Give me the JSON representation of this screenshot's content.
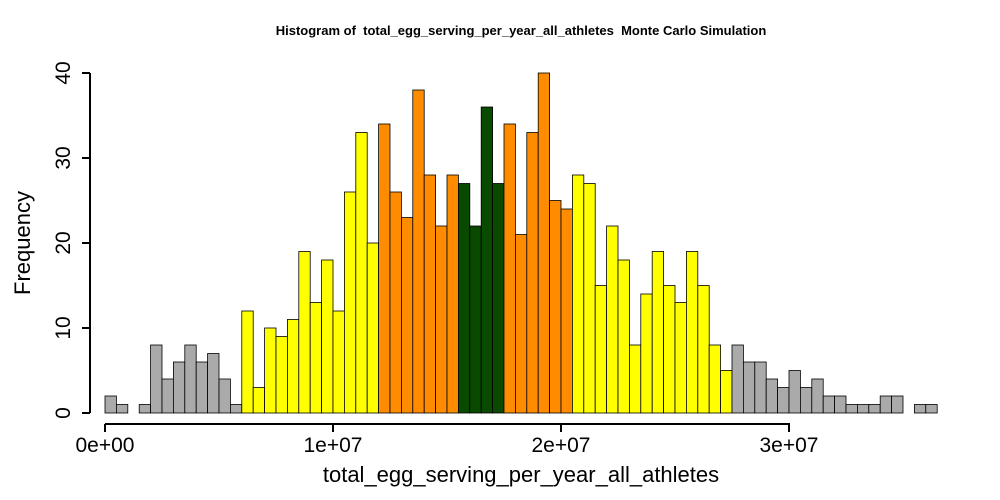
{
  "chart_data": {
    "type": "bar",
    "title": "Histogram of  total_egg_serving_per_year_all_athletes  Monte Carlo Simulation",
    "xlabel": "total_egg_serving_per_year_all_athletes",
    "ylabel": "Frequency",
    "xlim": [
      0,
      36500000
    ],
    "ylim": [
      0,
      40
    ],
    "bin_width": 500000,
    "x_ticks": [
      {
        "value": 0,
        "label": "0e+00"
      },
      {
        "value": 10000000,
        "label": "1e+07"
      },
      {
        "value": 20000000,
        "label": "2e+07"
      },
      {
        "value": 30000000,
        "label": "3e+07"
      }
    ],
    "y_ticks": [
      {
        "value": 0,
        "label": "0"
      },
      {
        "value": 10,
        "label": "10"
      },
      {
        "value": 20,
        "label": "20"
      },
      {
        "value": 30,
        "label": "30"
      },
      {
        "value": 40,
        "label": "40"
      }
    ],
    "colors": {
      "tail": "#aaaaaa",
      "outer": "#ffff00",
      "inner": "#ff8c00",
      "center": "#0a4a00",
      "border": "#000000"
    },
    "bins": [
      {
        "start": 0,
        "count": 2,
        "group": "tail"
      },
      {
        "start": 500000,
        "count": 1,
        "group": "tail"
      },
      {
        "start": 1000000,
        "count": 0,
        "group": "tail"
      },
      {
        "start": 1500000,
        "count": 1,
        "group": "tail"
      },
      {
        "start": 2000000,
        "count": 8,
        "group": "tail"
      },
      {
        "start": 2500000,
        "count": 4,
        "group": "tail"
      },
      {
        "start": 3000000,
        "count": 6,
        "group": "tail"
      },
      {
        "start": 3500000,
        "count": 8,
        "group": "tail"
      },
      {
        "start": 4000000,
        "count": 6,
        "group": "tail"
      },
      {
        "start": 4500000,
        "count": 7,
        "group": "tail"
      },
      {
        "start": 5000000,
        "count": 4,
        "group": "tail"
      },
      {
        "start": 5500000,
        "count": 1,
        "group": "tail"
      },
      {
        "start": 6000000,
        "count": 12,
        "group": "outer"
      },
      {
        "start": 6500000,
        "count": 3,
        "group": "outer"
      },
      {
        "start": 7000000,
        "count": 10,
        "group": "outer"
      },
      {
        "start": 7500000,
        "count": 9,
        "group": "outer"
      },
      {
        "start": 8000000,
        "count": 11,
        "group": "outer"
      },
      {
        "start": 8500000,
        "count": 19,
        "group": "outer"
      },
      {
        "start": 9000000,
        "count": 13,
        "group": "outer"
      },
      {
        "start": 9500000,
        "count": 18,
        "group": "outer"
      },
      {
        "start": 10000000,
        "count": 12,
        "group": "outer"
      },
      {
        "start": 10500000,
        "count": 26,
        "group": "outer"
      },
      {
        "start": 11000000,
        "count": 33,
        "group": "outer"
      },
      {
        "start": 11500000,
        "count": 20,
        "group": "outer"
      },
      {
        "start": 12000000,
        "count": 34,
        "group": "inner"
      },
      {
        "start": 12500000,
        "count": 26,
        "group": "inner"
      },
      {
        "start": 13000000,
        "count": 23,
        "group": "inner"
      },
      {
        "start": 13500000,
        "count": 38,
        "group": "inner"
      },
      {
        "start": 14000000,
        "count": 28,
        "group": "inner"
      },
      {
        "start": 14500000,
        "count": 22,
        "group": "inner"
      },
      {
        "start": 15000000,
        "count": 28,
        "group": "inner"
      },
      {
        "start": 15500000,
        "count": 27,
        "group": "center"
      },
      {
        "start": 16000000,
        "count": 22,
        "group": "center"
      },
      {
        "start": 16500000,
        "count": 36,
        "group": "center"
      },
      {
        "start": 17000000,
        "count": 27,
        "group": "center"
      },
      {
        "start": 17500000,
        "count": 34,
        "group": "inner"
      },
      {
        "start": 18000000,
        "count": 21,
        "group": "inner"
      },
      {
        "start": 18500000,
        "count": 33,
        "group": "inner"
      },
      {
        "start": 19000000,
        "count": 40,
        "group": "inner"
      },
      {
        "start": 19500000,
        "count": 25,
        "group": "inner"
      },
      {
        "start": 20000000,
        "count": 24,
        "group": "inner"
      },
      {
        "start": 20500000,
        "count": 28,
        "group": "outer"
      },
      {
        "start": 21000000,
        "count": 27,
        "group": "outer"
      },
      {
        "start": 21500000,
        "count": 15,
        "group": "outer"
      },
      {
        "start": 22000000,
        "count": 22,
        "group": "outer"
      },
      {
        "start": 22500000,
        "count": 18,
        "group": "outer"
      },
      {
        "start": 23000000,
        "count": 8,
        "group": "outer"
      },
      {
        "start": 23500000,
        "count": 14,
        "group": "outer"
      },
      {
        "start": 24000000,
        "count": 19,
        "group": "outer"
      },
      {
        "start": 24500000,
        "count": 15,
        "group": "outer"
      },
      {
        "start": 25000000,
        "count": 13,
        "group": "outer"
      },
      {
        "start": 25500000,
        "count": 19,
        "group": "outer"
      },
      {
        "start": 26000000,
        "count": 15,
        "group": "outer"
      },
      {
        "start": 26500000,
        "count": 8,
        "group": "outer"
      },
      {
        "start": 27000000,
        "count": 5,
        "group": "outer"
      },
      {
        "start": 27500000,
        "count": 8,
        "group": "tail"
      },
      {
        "start": 28000000,
        "count": 6,
        "group": "tail"
      },
      {
        "start": 28500000,
        "count": 6,
        "group": "tail"
      },
      {
        "start": 29000000,
        "count": 4,
        "group": "tail"
      },
      {
        "start": 29500000,
        "count": 3,
        "group": "tail"
      },
      {
        "start": 30000000,
        "count": 5,
        "group": "tail"
      },
      {
        "start": 30500000,
        "count": 3,
        "group": "tail"
      },
      {
        "start": 31000000,
        "count": 4,
        "group": "tail"
      },
      {
        "start": 31500000,
        "count": 2,
        "group": "tail"
      },
      {
        "start": 32000000,
        "count": 2,
        "group": "tail"
      },
      {
        "start": 32500000,
        "count": 1,
        "group": "tail"
      },
      {
        "start": 33000000,
        "count": 1,
        "group": "tail"
      },
      {
        "start": 33500000,
        "count": 1,
        "group": "tail"
      },
      {
        "start": 34000000,
        "count": 2,
        "group": "tail"
      },
      {
        "start": 34500000,
        "count": 2,
        "group": "tail"
      },
      {
        "start": 35000000,
        "count": 0,
        "group": "tail"
      },
      {
        "start": 35500000,
        "count": 1,
        "group": "tail"
      },
      {
        "start": 36000000,
        "count": 1,
        "group": "tail"
      }
    ]
  }
}
